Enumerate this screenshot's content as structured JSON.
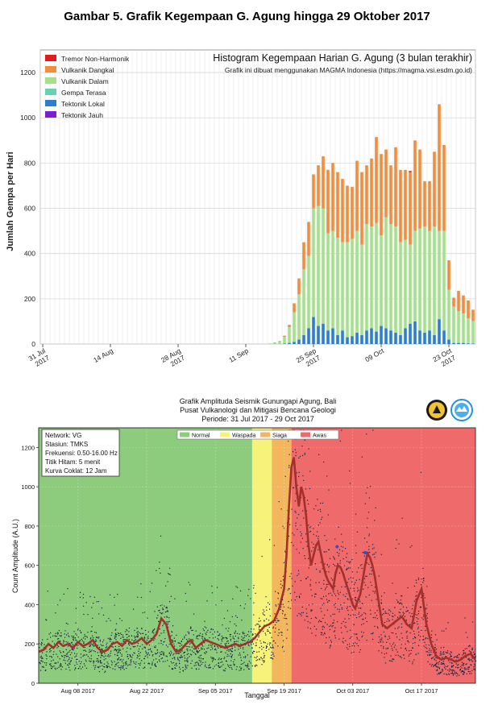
{
  "page_title": "Gambar 5. Grafik Kegempaan G. Agung hingga 29 Oktober 2017",
  "chart_data": [
    {
      "type": "bar",
      "stacked": true,
      "title": "Histogram Kegempaan Harian G. Agung (3 bulan terakhir)",
      "subtitle": "Grafik ini dibuat menggunakan MAGMA Indonesia (https://magma.vsi.esdm.go.id)",
      "ylabel": "Jumlah Gempa per Hari",
      "ylim": [
        0,
        1300
      ],
      "yticks": [
        0,
        200,
        400,
        600,
        800,
        1000,
        1200
      ],
      "xtick_labels": [
        {
          "day": 0,
          "line1": "31 Jul",
          "line2": "2017"
        },
        {
          "day": 14,
          "line1": "14 Aug",
          "line2": ""
        },
        {
          "day": 28,
          "line1": "28 Aug",
          "line2": "2017"
        },
        {
          "day": 42,
          "line1": "11 Sep",
          "line2": ""
        },
        {
          "day": 56,
          "line1": "25 Sep",
          "line2": "2017"
        },
        {
          "day": 70,
          "line1": "09 Oct",
          "line2": ""
        },
        {
          "day": 84,
          "line1": "23 Oct",
          "line2": "2017"
        }
      ],
      "grid": true,
      "legend_position": "top-left",
      "categories_start": "31 Jul 2017",
      "series": [
        {
          "name": "Tremor Non-Harmonik",
          "color": "#e31a1c",
          "values": [
            0,
            0,
            0,
            0,
            0,
            0,
            0,
            0,
            0,
            0,
            0,
            0,
            0,
            0,
            0,
            0,
            0,
            0,
            0,
            0,
            0,
            0,
            0,
            0,
            0,
            0,
            0,
            0,
            0,
            0,
            0,
            0,
            0,
            0,
            0,
            0,
            0,
            0,
            0,
            0,
            0,
            0,
            0,
            0,
            0,
            0,
            0,
            0,
            0,
            0,
            0,
            0,
            0,
            0,
            0,
            0,
            0,
            0,
            0,
            0,
            0,
            0,
            0,
            0,
            0,
            0,
            0,
            0,
            0,
            0,
            0,
            0,
            0,
            0,
            0,
            0,
            5,
            0,
            0,
            0,
            0,
            0,
            0,
            0,
            0,
            0,
            0,
            0,
            0,
            0
          ]
        },
        {
          "name": "Vulkanik Dangkal",
          "color": "#f28e3b",
          "values": [
            0,
            0,
            0,
            0,
            0,
            0,
            0,
            0,
            0,
            0,
            0,
            0,
            0,
            0,
            0,
            0,
            0,
            0,
            0,
            0,
            0,
            0,
            0,
            0,
            0,
            0,
            0,
            0,
            0,
            0,
            0,
            0,
            0,
            0,
            0,
            0,
            0,
            0,
            0,
            0,
            0,
            0,
            0,
            0,
            0,
            0,
            0,
            0,
            2,
            3,
            5,
            10,
            40,
            70,
            120,
            150,
            150,
            180,
            230,
            280,
            300,
            290,
            280,
            250,
            230,
            310,
            320,
            260,
            300,
            380,
            360,
            300,
            260,
            350,
            320,
            310,
            320,
            400,
            350,
            200,
            220,
            330,
            560,
            380,
            130,
            40,
            90,
            80,
            80,
            50
          ]
        },
        {
          "name": "Vulkanik Dalam",
          "color": "#a6e08d",
          "values": [
            0,
            0,
            0,
            0,
            0,
            0,
            0,
            0,
            0,
            0,
            0,
            0,
            0,
            0,
            0,
            0,
            0,
            0,
            0,
            0,
            0,
            0,
            0,
            0,
            0,
            0,
            0,
            0,
            0,
            0,
            0,
            0,
            0,
            0,
            0,
            0,
            0,
            0,
            0,
            0,
            0,
            0,
            0,
            0,
            0,
            0,
            0,
            3,
            5,
            10,
            30,
            70,
            130,
            200,
            290,
            320,
            480,
            530,
            510,
            430,
            430,
            430,
            390,
            420,
            430,
            450,
            400,
            470,
            450,
            480,
            400,
            490,
            470,
            470,
            410,
            390,
            350,
            400,
            450,
            470,
            440,
            480,
            390,
            440,
            220,
            160,
            140,
            130,
            110,
            100
          ]
        },
        {
          "name": "Gempa Terasa",
          "color": "#66d2b0",
          "values": [
            0,
            0,
            0,
            0,
            0,
            0,
            0,
            0,
            0,
            0,
            0,
            0,
            0,
            0,
            0,
            0,
            0,
            0,
            0,
            0,
            0,
            0,
            0,
            0,
            0,
            0,
            0,
            0,
            0,
            0,
            0,
            0,
            0,
            0,
            0,
            0,
            0,
            0,
            0,
            0,
            0,
            0,
            0,
            0,
            0,
            0,
            0,
            0,
            0,
            0,
            0,
            0,
            0,
            0,
            0,
            0,
            0,
            0,
            0,
            0,
            0,
            0,
            0,
            0,
            0,
            0,
            0,
            0,
            0,
            0,
            0,
            0,
            0,
            0,
            0,
            0,
            0,
            0,
            0,
            0,
            0,
            0,
            0,
            0,
            0,
            0,
            0,
            0,
            0,
            0
          ]
        },
        {
          "name": "Tektonik Lokal",
          "color": "#2c7fd0",
          "values": [
            0,
            0,
            0,
            0,
            0,
            0,
            0,
            0,
            0,
            0,
            0,
            0,
            0,
            0,
            0,
            0,
            0,
            0,
            0,
            0,
            0,
            0,
            0,
            0,
            0,
            0,
            0,
            0,
            0,
            0,
            0,
            0,
            0,
            0,
            0,
            0,
            0,
            0,
            0,
            0,
            0,
            0,
            0,
            0,
            0,
            0,
            0,
            0,
            0,
            0,
            2,
            5,
            10,
            20,
            40,
            70,
            120,
            80,
            90,
            60,
            70,
            40,
            60,
            30,
            35,
            50,
            40,
            60,
            70,
            55,
            80,
            70,
            60,
            50,
            40,
            70,
            90,
            100,
            60,
            50,
            60,
            40,
            110,
            60,
            20,
            5,
            5,
            5,
            3,
            2
          ]
        },
        {
          "name": "Tektonik Jauh",
          "color": "#7b1fd1",
          "values": [
            0,
            0,
            0,
            0,
            0,
            0,
            0,
            0,
            0,
            0,
            0,
            0,
            0,
            0,
            0,
            0,
            0,
            0,
            0,
            0,
            0,
            0,
            0,
            0,
            0,
            0,
            0,
            0,
            0,
            0,
            0,
            0,
            0,
            0,
            0,
            0,
            0,
            0,
            0,
            0,
            0,
            0,
            0,
            0,
            0,
            0,
            0,
            0,
            0,
            0,
            0,
            0,
            0,
            0,
            0,
            0,
            0,
            0,
            0,
            0,
            0,
            0,
            0,
            0,
            0,
            0,
            0,
            0,
            0,
            0,
            0,
            0,
            0,
            0,
            0,
            0,
            0,
            0,
            0,
            0,
            0,
            0,
            0,
            0,
            0,
            0,
            0,
            0,
            0,
            0
          ]
        }
      ]
    },
    {
      "type": "line",
      "title_lines": [
        "Grafik Amplituda Seismik Gunungapi Agung, Bali",
        "Pusat Vulkanologi dan Mitigasi Bencana Geologi",
        "Periode: 31 Jul 2017 - 29 Oct 2017"
      ],
      "ylabel": "Count Amplitude (A.U.)",
      "xlabel": "Tanggal",
      "ylim": [
        0,
        1300
      ],
      "yticks": [
        0,
        200,
        400,
        600,
        800,
        1000,
        1200
      ],
      "xticks": [
        {
          "day": 8,
          "label": "Aug 08 2017"
        },
        {
          "day": 22,
          "label": "Aug 22 2017"
        },
        {
          "day": 36,
          "label": "Sep 05 2017"
        },
        {
          "day": 50,
          "label": "Sep 19 2017"
        },
        {
          "day": 64,
          "label": "Oct 03 2017"
        },
        {
          "day": 78,
          "label": "Oct 17 2017"
        }
      ],
      "xlim_days": [
        0,
        89
      ],
      "info_box": [
        "Network: VG",
        "Stasiun: TMKS",
        "Frekuensi: 0.50-16.00 Hz",
        "Titik Hitam: 5 menit",
        "Kurva Coklat: 12 Jam"
      ],
      "alert_levels": [
        {
          "name": "Normal",
          "color": "#8ccc7c",
          "from_day": 0,
          "to_day": 43.5
        },
        {
          "name": "Waspada",
          "color": "#f6f27a",
          "from_day": 43.5,
          "to_day": 47.5
        },
        {
          "name": "Siaga",
          "color": "#f4b65c",
          "from_day": 47.5,
          "to_day": 51.5
        },
        {
          "name": "Awas",
          "color": "#ef6b6b",
          "from_day": 51.5,
          "to_day": 89
        }
      ],
      "series": [
        {
          "name": "Kurva Coklat",
          "color": "#a3302a",
          "x": [
            0,
            1,
            2,
            3,
            4,
            5,
            6,
            7,
            8,
            9,
            10,
            11,
            12,
            13,
            14,
            15,
            16,
            17,
            18,
            19,
            20,
            21,
            22,
            23,
            24,
            25,
            26,
            27,
            28,
            29,
            30,
            31,
            32,
            33,
            34,
            35,
            36,
            37,
            38,
            39,
            40,
            41,
            42,
            43,
            44,
            45,
            46,
            47,
            48,
            49,
            50,
            50.5,
            51,
            51.5,
            52,
            52.5,
            53,
            53.5,
            54,
            54.5,
            55,
            55.5,
            56,
            56.5,
            57,
            57.5,
            58,
            58.5,
            59,
            59.5,
            60,
            60.5,
            61,
            61.5,
            62,
            62.5,
            63,
            63.5,
            64,
            64.5,
            65,
            65.5,
            66,
            66.5,
            67,
            67.5,
            68,
            68.5,
            69,
            69.5,
            70,
            71,
            72,
            73,
            74,
            75,
            76,
            77,
            78,
            79,
            80,
            81,
            82,
            83,
            84,
            85,
            86,
            87,
            88,
            89
          ],
          "y": [
            160,
            170,
            200,
            180,
            210,
            190,
            200,
            180,
            210,
            190,
            200,
            220,
            180,
            160,
            170,
            200,
            210,
            190,
            220,
            200,
            210,
            230,
            200,
            220,
            250,
            330,
            300,
            200,
            160,
            170,
            200,
            220,
            180,
            200,
            220,
            210,
            200,
            190,
            180,
            190,
            200,
            190,
            200,
            210,
            230,
            260,
            290,
            300,
            320,
            380,
            480,
            650,
            900,
            1100,
            1150,
            1000,
            900,
            1000,
            950,
            850,
            700,
            600,
            650,
            700,
            720,
            660,
            600,
            550,
            520,
            500,
            480,
            560,
            600,
            590,
            560,
            520,
            480,
            440,
            400,
            380,
            420,
            450,
            520,
            600,
            660,
            640,
            600,
            540,
            460,
            380,
            300,
            280,
            300,
            320,
            340,
            300,
            280,
            420,
            480,
            300,
            200,
            140,
            120,
            130,
            120,
            110,
            120,
            140,
            150,
            120
          ]
        },
        {
          "name": "Titik Hitam",
          "color": "#1a2140"
        }
      ]
    }
  ]
}
